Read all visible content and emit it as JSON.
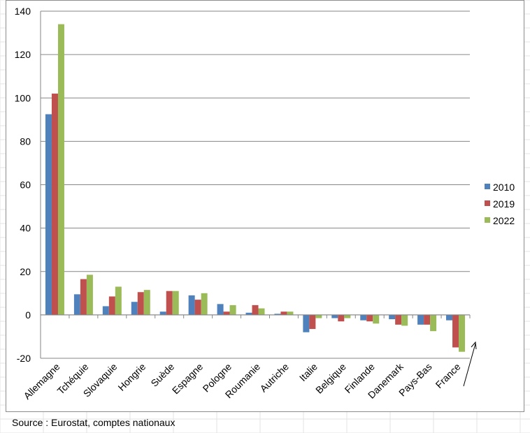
{
  "source_note": "Source : Eurostat, comptes nationaux",
  "chart_data": {
    "type": "bar",
    "categories": [
      "Allemagne",
      "Tchéquie",
      "Slovaquie",
      "Hongrie",
      "Suède",
      "Espagne",
      "Pologne",
      "Roumanie",
      "Autriche",
      "Italie",
      "Belgique",
      "Finlande",
      "Danemark",
      "Pays-Bas",
      "France"
    ],
    "series": [
      {
        "name": "2010",
        "color": "#4f81bd",
        "values": [
          92.5,
          9.5,
          4,
          6,
          1.5,
          9,
          5,
          1,
          0.5,
          -8,
          -1.5,
          -2.5,
          -2,
          -4.5,
          -2.5
        ]
      },
      {
        "name": "2019",
        "color": "#c0504d",
        "values": [
          102,
          16.5,
          8.5,
          10.5,
          11,
          7,
          1.5,
          4.5,
          1.5,
          -6.5,
          -3,
          -3,
          -4.5,
          -4.5,
          -15
        ]
      },
      {
        "name": "2022",
        "color": "#9bbb59",
        "values": [
          134,
          18.5,
          13,
          11.5,
          11,
          10,
          4.5,
          3,
          1.5,
          -1.5,
          -1.5,
          -4,
          -5,
          -7.5,
          -17
        ]
      }
    ],
    "y_ticks": [
      140,
      120,
      100,
      80,
      60,
      40,
      20,
      0,
      -20
    ],
    "ylim": [
      -20,
      140
    ],
    "grid": true,
    "legend_position": "right",
    "title": "",
    "xlabel": "",
    "ylabel": ""
  }
}
